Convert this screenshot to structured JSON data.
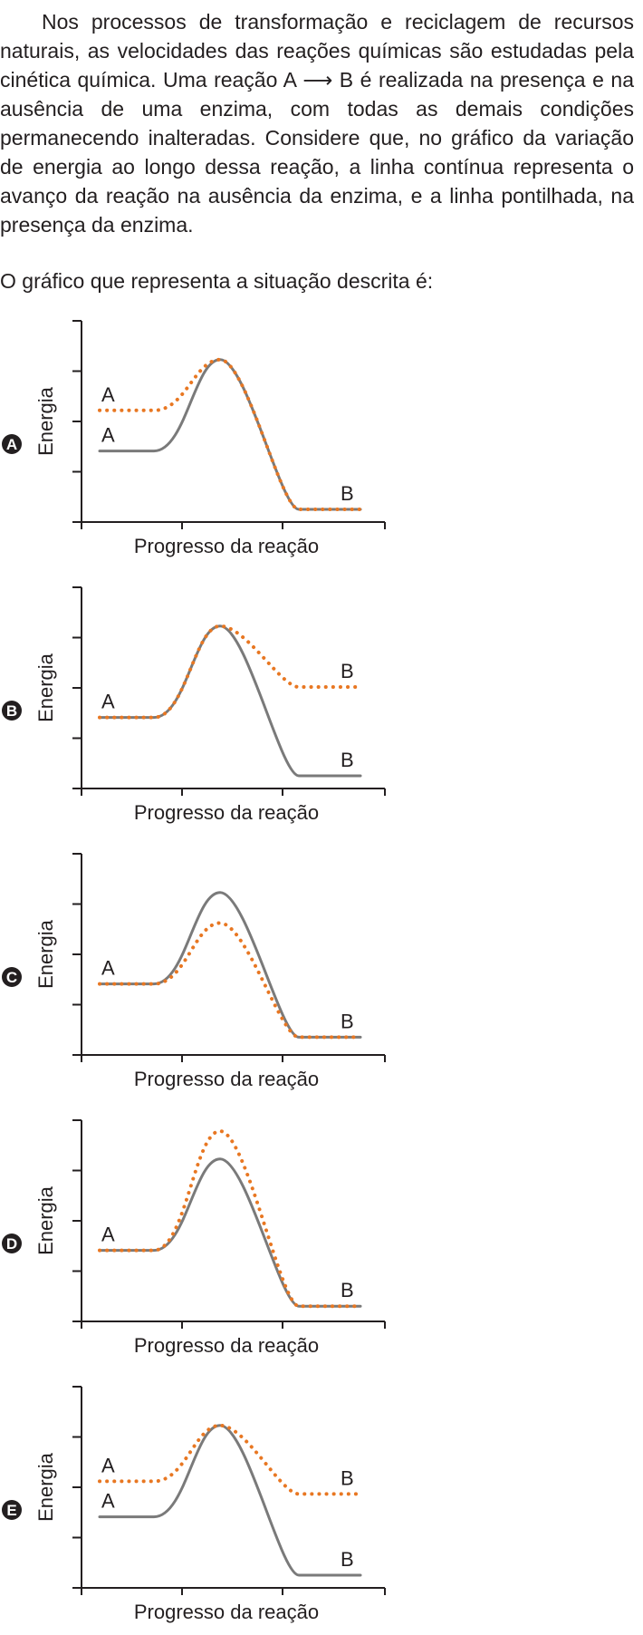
{
  "question": {
    "text": "Nos processos de transformação e reciclagem de recursos naturais, as velocidades das reações químicas são estudadas pela cinética química. Uma reação A ⟶ B é realizada na presença e na ausência de uma enzima, com todas as demais condições permanecendo inalteradas. Considere que, no gráfico da variação de energia ao longo dessa reação, a linha contínua representa o avanço da reação na ausência da enzima, e a linha pontilhada, na presença da enzima.",
    "prompt": "O gráfico que representa a situação descrita é:"
  },
  "colors": {
    "solid_line": "#7a7a7a",
    "dotted_line": "#e87722",
    "text": "#231f20"
  },
  "chart_data": [
    {
      "type": "line",
      "option": "A",
      "xlabel": "Progresso da reação",
      "ylabel": "Energia",
      "series": [
        {
          "style": "solid",
          "start_label": "A",
          "end_label": "B",
          "reactant": 1.4,
          "peak": 3.2,
          "product": 0.25
        },
        {
          "style": "dotted",
          "start_label": "A",
          "end_label": "",
          "reactant": 2.2,
          "peak": 3.2,
          "product": 0.25
        }
      ]
    },
    {
      "type": "line",
      "option": "B",
      "xlabel": "Progresso da reação",
      "ylabel": "Energia",
      "series": [
        {
          "style": "solid",
          "start_label": "A",
          "end_label": "B",
          "reactant": 1.4,
          "peak": 3.2,
          "product": 0.25
        },
        {
          "style": "dotted",
          "start_label": "",
          "end_label": "B",
          "reactant": 1.4,
          "peak": 3.2,
          "product": 2.0
        }
      ]
    },
    {
      "type": "line",
      "option": "C",
      "xlabel": "Progresso da reação",
      "ylabel": "Energia",
      "series": [
        {
          "style": "solid",
          "start_label": "A",
          "end_label": "B",
          "reactant": 1.4,
          "peak": 3.2,
          "product": 0.35
        },
        {
          "style": "dotted",
          "start_label": "",
          "end_label": "",
          "reactant": 1.4,
          "peak": 2.6,
          "product": 0.35
        }
      ]
    },
    {
      "type": "line",
      "option": "D",
      "xlabel": "Progresso da reação",
      "ylabel": "Energia",
      "series": [
        {
          "style": "solid",
          "start_label": "A",
          "end_label": "B",
          "reactant": 1.4,
          "peak": 3.2,
          "product": 0.3
        },
        {
          "style": "dotted",
          "start_label": "",
          "end_label": "",
          "reactant": 1.4,
          "peak": 3.75,
          "product": 0.3
        }
      ]
    },
    {
      "type": "line",
      "option": "E",
      "xlabel": "Progresso da reação",
      "ylabel": "Energia",
      "series": [
        {
          "style": "solid",
          "start_label": "A",
          "end_label": "B",
          "reactant": 1.4,
          "peak": 3.2,
          "product": 0.25
        },
        {
          "style": "dotted",
          "start_label": "A",
          "end_label": "B",
          "reactant": 2.1,
          "peak": 3.2,
          "product": 1.85
        }
      ]
    }
  ]
}
